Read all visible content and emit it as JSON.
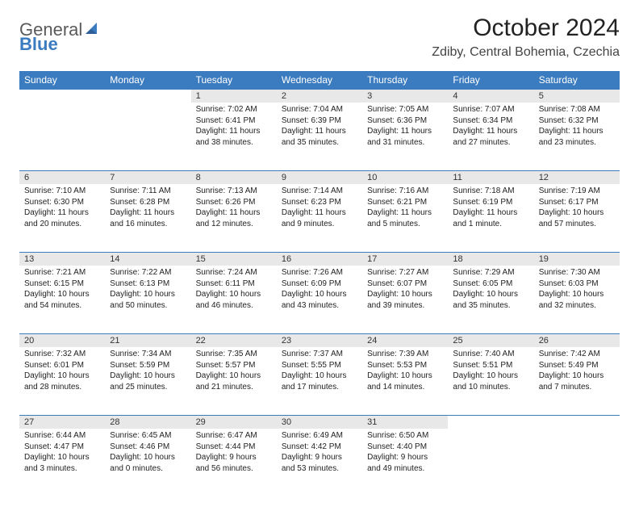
{
  "logo": {
    "part1": "General",
    "part2": "Blue"
  },
  "title": "October 2024",
  "location": "Zdiby, Central Bohemia, Czechia",
  "colors": {
    "header_bg": "#3b7bbf",
    "header_text": "#ffffff",
    "daynum_bg": "#e8e8e8",
    "border": "#3b7bbf"
  },
  "day_headers": [
    "Sunday",
    "Monday",
    "Tuesday",
    "Wednesday",
    "Thursday",
    "Friday",
    "Saturday"
  ],
  "weeks": [
    [
      null,
      null,
      {
        "n": "1",
        "sunrise": "7:02 AM",
        "sunset": "6:41 PM",
        "daylight": "11 hours and 38 minutes."
      },
      {
        "n": "2",
        "sunrise": "7:04 AM",
        "sunset": "6:39 PM",
        "daylight": "11 hours and 35 minutes."
      },
      {
        "n": "3",
        "sunrise": "7:05 AM",
        "sunset": "6:36 PM",
        "daylight": "11 hours and 31 minutes."
      },
      {
        "n": "4",
        "sunrise": "7:07 AM",
        "sunset": "6:34 PM",
        "daylight": "11 hours and 27 minutes."
      },
      {
        "n": "5",
        "sunrise": "7:08 AM",
        "sunset": "6:32 PM",
        "daylight": "11 hours and 23 minutes."
      }
    ],
    [
      {
        "n": "6",
        "sunrise": "7:10 AM",
        "sunset": "6:30 PM",
        "daylight": "11 hours and 20 minutes."
      },
      {
        "n": "7",
        "sunrise": "7:11 AM",
        "sunset": "6:28 PM",
        "daylight": "11 hours and 16 minutes."
      },
      {
        "n": "8",
        "sunrise": "7:13 AM",
        "sunset": "6:26 PM",
        "daylight": "11 hours and 12 minutes."
      },
      {
        "n": "9",
        "sunrise": "7:14 AM",
        "sunset": "6:23 PM",
        "daylight": "11 hours and 9 minutes."
      },
      {
        "n": "10",
        "sunrise": "7:16 AM",
        "sunset": "6:21 PM",
        "daylight": "11 hours and 5 minutes."
      },
      {
        "n": "11",
        "sunrise": "7:18 AM",
        "sunset": "6:19 PM",
        "daylight": "11 hours and 1 minute."
      },
      {
        "n": "12",
        "sunrise": "7:19 AM",
        "sunset": "6:17 PM",
        "daylight": "10 hours and 57 minutes."
      }
    ],
    [
      {
        "n": "13",
        "sunrise": "7:21 AM",
        "sunset": "6:15 PM",
        "daylight": "10 hours and 54 minutes."
      },
      {
        "n": "14",
        "sunrise": "7:22 AM",
        "sunset": "6:13 PM",
        "daylight": "10 hours and 50 minutes."
      },
      {
        "n": "15",
        "sunrise": "7:24 AM",
        "sunset": "6:11 PM",
        "daylight": "10 hours and 46 minutes."
      },
      {
        "n": "16",
        "sunrise": "7:26 AM",
        "sunset": "6:09 PM",
        "daylight": "10 hours and 43 minutes."
      },
      {
        "n": "17",
        "sunrise": "7:27 AM",
        "sunset": "6:07 PM",
        "daylight": "10 hours and 39 minutes."
      },
      {
        "n": "18",
        "sunrise": "7:29 AM",
        "sunset": "6:05 PM",
        "daylight": "10 hours and 35 minutes."
      },
      {
        "n": "19",
        "sunrise": "7:30 AM",
        "sunset": "6:03 PM",
        "daylight": "10 hours and 32 minutes."
      }
    ],
    [
      {
        "n": "20",
        "sunrise": "7:32 AM",
        "sunset": "6:01 PM",
        "daylight": "10 hours and 28 minutes."
      },
      {
        "n": "21",
        "sunrise": "7:34 AM",
        "sunset": "5:59 PM",
        "daylight": "10 hours and 25 minutes."
      },
      {
        "n": "22",
        "sunrise": "7:35 AM",
        "sunset": "5:57 PM",
        "daylight": "10 hours and 21 minutes."
      },
      {
        "n": "23",
        "sunrise": "7:37 AM",
        "sunset": "5:55 PM",
        "daylight": "10 hours and 17 minutes."
      },
      {
        "n": "24",
        "sunrise": "7:39 AM",
        "sunset": "5:53 PM",
        "daylight": "10 hours and 14 minutes."
      },
      {
        "n": "25",
        "sunrise": "7:40 AM",
        "sunset": "5:51 PM",
        "daylight": "10 hours and 10 minutes."
      },
      {
        "n": "26",
        "sunrise": "7:42 AM",
        "sunset": "5:49 PM",
        "daylight": "10 hours and 7 minutes."
      }
    ],
    [
      {
        "n": "27",
        "sunrise": "6:44 AM",
        "sunset": "4:47 PM",
        "daylight": "10 hours and 3 minutes."
      },
      {
        "n": "28",
        "sunrise": "6:45 AM",
        "sunset": "4:46 PM",
        "daylight": "10 hours and 0 minutes."
      },
      {
        "n": "29",
        "sunrise": "6:47 AM",
        "sunset": "4:44 PM",
        "daylight": "9 hours and 56 minutes."
      },
      {
        "n": "30",
        "sunrise": "6:49 AM",
        "sunset": "4:42 PM",
        "daylight": "9 hours and 53 minutes."
      },
      {
        "n": "31",
        "sunrise": "6:50 AM",
        "sunset": "4:40 PM",
        "daylight": "9 hours and 49 minutes."
      },
      null,
      null
    ]
  ],
  "labels": {
    "sunrise": "Sunrise:",
    "sunset": "Sunset:",
    "daylight": "Daylight:"
  }
}
